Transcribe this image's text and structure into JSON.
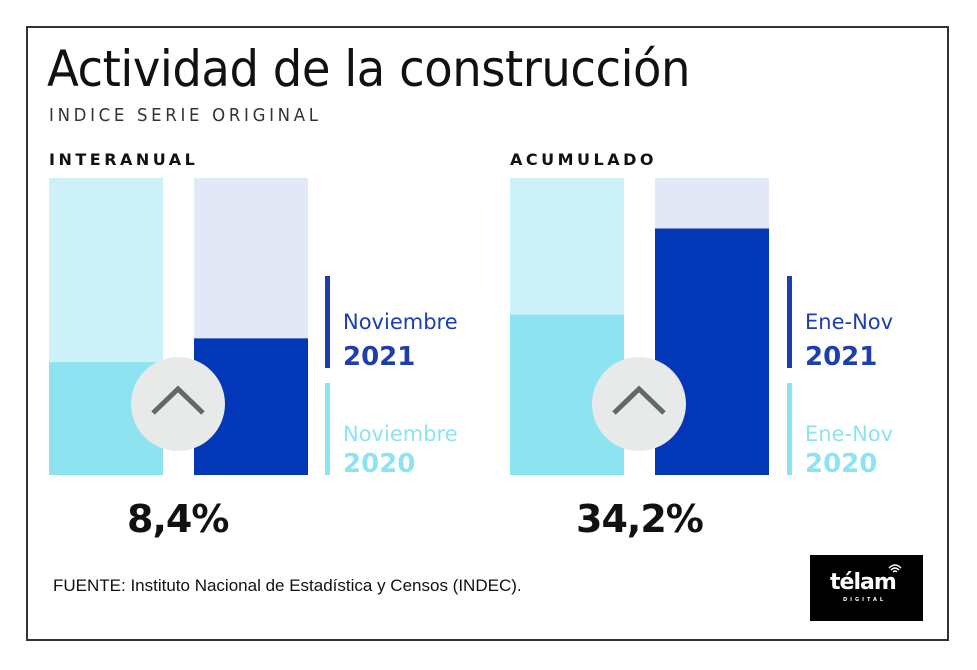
{
  "title": "Actividad de la construcción",
  "subtitle": "INDICE SERIE ORIGINAL",
  "source": "FUENTE: Instituto Nacional de Estadística y Censos (INDEC).",
  "logo": {
    "word": "télam",
    "sub": "DIGITAL"
  },
  "colors": {
    "prev_fill": "#8ee3f1",
    "prev_track": "#cdf1f8",
    "curr_fill": "#0237b8",
    "curr_track": "#e2e8f6",
    "badge_bg": "#e8eaea",
    "badge_icon": "#5f6b68",
    "legend_curr": "#1d3fae",
    "legend_prev": "#8ee3f1"
  },
  "panels": [
    {
      "label": "INTERANUAL",
      "change": "8,4%",
      "legend": [
        {
          "period": "Noviembre",
          "year": "2021"
        },
        {
          "period": "Noviembre",
          "year": "2020"
        }
      ]
    },
    {
      "label": "ACUMULADO",
      "change": "34,2%",
      "legend": [
        {
          "period": "Ene-Nov",
          "year": "2021"
        },
        {
          "period": "Ene-Nov",
          "year": "2020"
        }
      ]
    }
  ],
  "chart_data": [
    {
      "type": "bar",
      "title": "INTERANUAL",
      "categories": [
        "Noviembre 2020",
        "Noviembre 2021"
      ],
      "values_fraction_of_track": [
        0.38,
        0.46
      ],
      "annotation": "8,4%",
      "trend": "up",
      "xlabel": "",
      "ylabel": "",
      "ylim": [
        0,
        1
      ],
      "grid": false
    },
    {
      "type": "bar",
      "title": "ACUMULADO",
      "categories": [
        "Ene-Nov 2020",
        "Ene-Nov 2021"
      ],
      "values_fraction_of_track": [
        0.54,
        0.83
      ],
      "annotation": "34,2%",
      "trend": "up",
      "xlabel": "",
      "ylabel": "",
      "ylim": [
        0,
        1
      ],
      "grid": false
    }
  ]
}
